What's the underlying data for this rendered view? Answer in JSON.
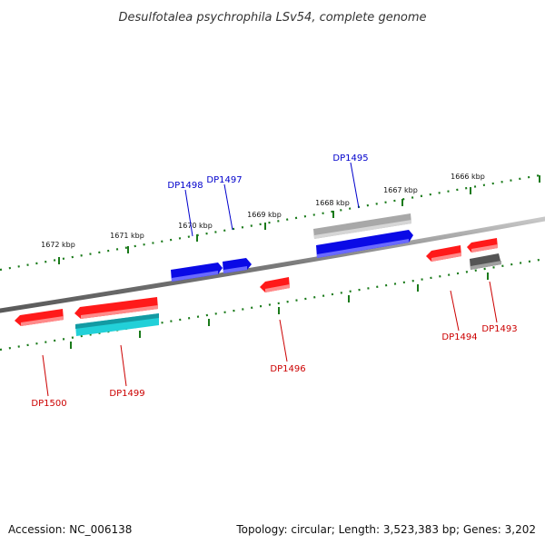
{
  "title": "Desulfotalea psychrophila LSv54, complete genome",
  "footer": {
    "accession": "Accession: NC_006138",
    "summary": "Topology: circular; Length: 3,523,383 bp; Genes: 3,202"
  },
  "colors": {
    "backbone": "#808080",
    "tick": "#1a7a1a",
    "upper_label": "#0000cc",
    "lower_label": "#cc0000",
    "gene_red": "#ff1a1a",
    "gene_blue": "#0a0ae6",
    "gene_cyan": "#22d0d8",
    "gene_gray": "#a8a8a8",
    "gene_darkgray": "#555555"
  },
  "scale_labels": [
    "1672 kbp",
    "1671 kbp",
    "1670 kbp",
    "1669 kbp",
    "1668 kbp",
    "1667 kbp",
    "1666 kbp"
  ],
  "gene_labels": [
    {
      "id": "DP1498",
      "strand": "upper"
    },
    {
      "id": "DP1497",
      "strand": "upper"
    },
    {
      "id": "DP1495",
      "strand": "upper"
    },
    {
      "id": "DP1500",
      "strand": "lower"
    },
    {
      "id": "DP1499",
      "strand": "lower"
    },
    {
      "id": "DP1496",
      "strand": "lower"
    },
    {
      "id": "DP1494",
      "strand": "lower"
    },
    {
      "id": "DP1493",
      "strand": "lower"
    }
  ]
}
